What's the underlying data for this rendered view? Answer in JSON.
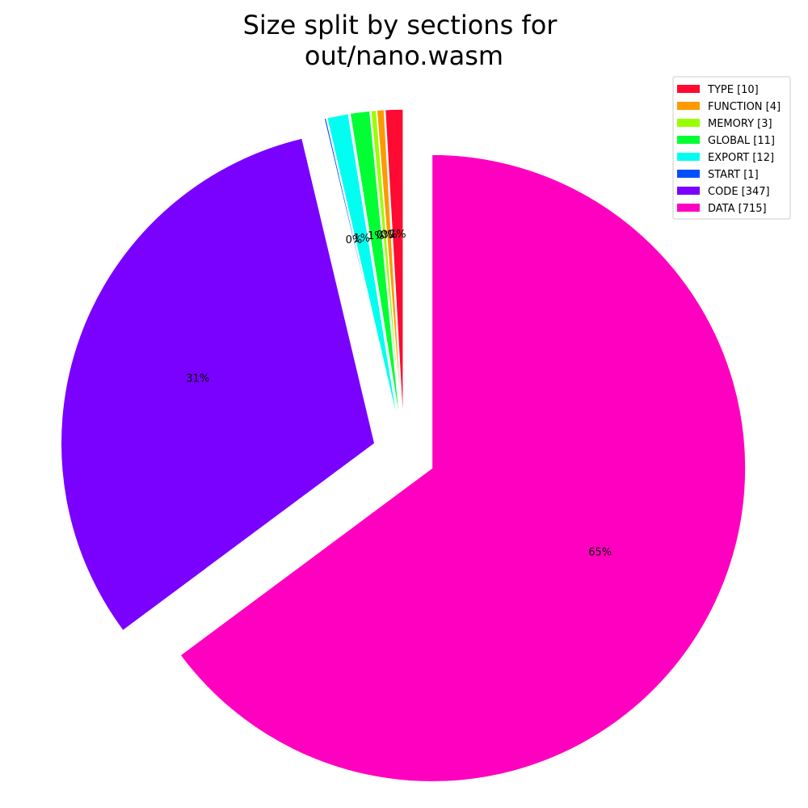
{
  "chart_data": {
    "type": "pie",
    "title": [
      "Size split by sections for",
      "out/nano.wasm"
    ],
    "legend_position": "top-right",
    "start_angle_deg": 90,
    "direction": "counterclockwise",
    "slices": [
      {
        "label": "TYPE [10]",
        "value": 10,
        "pct_label": "1%",
        "color": "#ff0a32",
        "explode": 0.1
      },
      {
        "label": "FUNCTION [4]",
        "value": 4,
        "pct_label": "0%",
        "color": "#ff9900",
        "explode": 0.1
      },
      {
        "label": "MEMORY [3]",
        "value": 3,
        "pct_label": "0%",
        "color": "#99ff00",
        "explode": 0.1
      },
      {
        "label": "GLOBAL [11]",
        "value": 11,
        "pct_label": "1%",
        "color": "#00ff33",
        "explode": 0.1
      },
      {
        "label": "EXPORT [12]",
        "value": 12,
        "pct_label": "1%",
        "color": "#00fff0",
        "explode": 0.1
      },
      {
        "label": "START [1]",
        "value": 1,
        "pct_label": "0%",
        "color": "#0050ff",
        "explode": 0.1
      },
      {
        "label": "CODE [347]",
        "value": 347,
        "pct_label": "31%",
        "color": "#7a00ff",
        "explode": 0.1
      },
      {
        "label": "DATA [715]",
        "value": 715,
        "pct_label": "65%",
        "color": "#ff00c0",
        "explode": 0.1
      }
    ]
  }
}
